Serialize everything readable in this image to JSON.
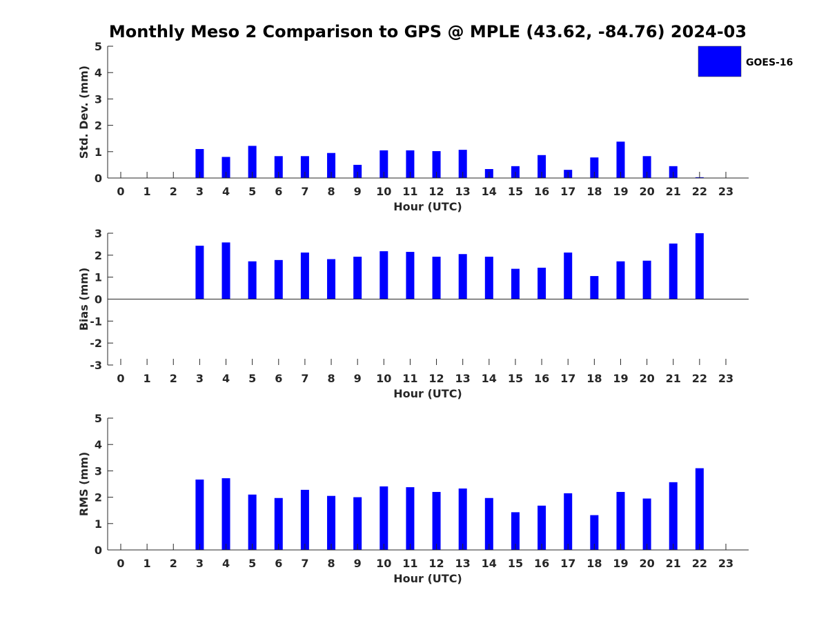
{
  "title": "Monthly Meso 2 Comparison to GPS @ MPLE (43.62, -84.76) 2024-03",
  "legend": {
    "label": "GOES-16",
    "color": "#0000ff"
  },
  "chart_data": [
    {
      "id": "std",
      "type": "bar",
      "xlabel": "Hour (UTC)",
      "ylabel": "Std. Dev. (mm)",
      "ylim": [
        0,
        5
      ],
      "yticks": [
        0,
        1,
        2,
        3,
        4,
        5
      ],
      "categories": [
        "0",
        "1",
        "2",
        "3",
        "4",
        "5",
        "6",
        "7",
        "8",
        "9",
        "10",
        "11",
        "12",
        "13",
        "14",
        "15",
        "16",
        "17",
        "18",
        "19",
        "20",
        "21",
        "22",
        "23"
      ],
      "series": [
        {
          "name": "GOES-16",
          "color": "#0000ff",
          "values": [
            null,
            null,
            null,
            1.1,
            0.8,
            1.22,
            0.83,
            0.83,
            0.95,
            0.5,
            1.05,
            1.05,
            1.02,
            1.07,
            0.34,
            0.45,
            0.87,
            0.31,
            0.78,
            1.38,
            0.83,
            0.45,
            0.03,
            null
          ]
        }
      ]
    },
    {
      "id": "bias",
      "type": "bar",
      "xlabel": "Hour (UTC)",
      "ylabel": "Bias (mm)",
      "ylim": [
        -3,
        3
      ],
      "yticks": [
        -3,
        -2,
        -1,
        0,
        1,
        2,
        3
      ],
      "categories": [
        "0",
        "1",
        "2",
        "3",
        "4",
        "5",
        "6",
        "7",
        "8",
        "9",
        "10",
        "11",
        "12",
        "13",
        "14",
        "15",
        "16",
        "17",
        "18",
        "19",
        "20",
        "21",
        "22",
        "23"
      ],
      "series": [
        {
          "name": "GOES-16",
          "color": "#0000ff",
          "values": [
            null,
            null,
            null,
            2.43,
            2.58,
            1.72,
            1.78,
            2.12,
            1.82,
            1.93,
            2.18,
            2.15,
            1.93,
            2.05,
            1.93,
            1.38,
            1.43,
            2.12,
            1.05,
            1.72,
            1.75,
            2.53,
            3.0,
            null
          ]
        }
      ]
    },
    {
      "id": "rms",
      "type": "bar",
      "xlabel": "Hour (UTC)",
      "ylabel": "RMS (mm)",
      "ylim": [
        0,
        5
      ],
      "yticks": [
        0,
        1,
        2,
        3,
        4,
        5
      ],
      "categories": [
        "0",
        "1",
        "2",
        "3",
        "4",
        "5",
        "6",
        "7",
        "8",
        "9",
        "10",
        "11",
        "12",
        "13",
        "14",
        "15",
        "16",
        "17",
        "18",
        "19",
        "20",
        "21",
        "22",
        "23"
      ],
      "series": [
        {
          "name": "GOES-16",
          "color": "#0000ff",
          "values": [
            null,
            null,
            null,
            2.67,
            2.72,
            2.1,
            1.97,
            2.28,
            2.05,
            2.0,
            2.41,
            2.38,
            2.2,
            2.33,
            1.97,
            1.43,
            1.68,
            2.15,
            1.32,
            2.2,
            1.95,
            2.57,
            3.1,
            null
          ]
        }
      ]
    }
  ]
}
